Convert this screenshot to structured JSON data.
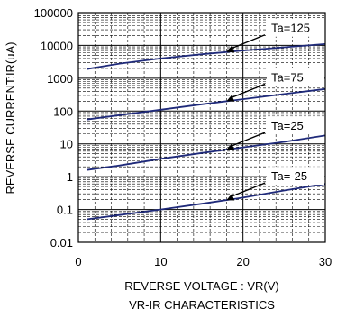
{
  "chart_data": {
    "type": "line",
    "title": "VR-IR CHARACTERISTICS",
    "xlabel": "REVERSE VOLTAGE : VR(V)",
    "ylabel": "REVERSE CURRENT:IR(uA)",
    "xlim": [
      0,
      30
    ],
    "ylim": [
      0.01,
      100000
    ],
    "y_scale": "log",
    "grid": true,
    "x_ticks": [
      0,
      10,
      20,
      30
    ],
    "x_tick_labels": [
      "0",
      "10",
      "20",
      "30"
    ],
    "y_ticks": [
      0.01,
      0.1,
      1,
      10,
      100,
      1000,
      10000,
      100000
    ],
    "y_tick_labels": [
      "0.01",
      "0.1",
      "1",
      "10",
      "100",
      "1000",
      "10000",
      "100000"
    ],
    "series": [
      {
        "name": "Ta=125",
        "x": [
          1,
          5,
          10,
          15,
          20,
          25,
          30
        ],
        "values": [
          1900,
          2800,
          4000,
          5400,
          7000,
          8800,
          11000
        ],
        "color": "#1f2a7a"
      },
      {
        "name": "Ta=75",
        "x": [
          1,
          5,
          10,
          15,
          20,
          25,
          30
        ],
        "values": [
          55,
          75,
          110,
          160,
          230,
          330,
          470
        ],
        "color": "#1f2a7a"
      },
      {
        "name": "Ta=25",
        "x": [
          1,
          5,
          10,
          15,
          20,
          25,
          30
        ],
        "values": [
          1.6,
          2.2,
          3.5,
          5.3,
          7.8,
          11.5,
          18
        ],
        "color": "#1f2a7a"
      },
      {
        "name": "Ta=-25",
        "x": [
          1,
          5,
          10,
          15,
          20,
          25,
          30
        ],
        "values": [
          0.05,
          0.068,
          0.1,
          0.15,
          0.23,
          0.38,
          0.6
        ],
        "color": "#1f2a7a"
      }
    ],
    "annotations": [
      {
        "text": "Ta=125",
        "series": "Ta=125",
        "x": 18
      },
      {
        "text": "Ta=75",
        "series": "Ta=75",
        "x": 18
      },
      {
        "text": "Ta=25",
        "series": "Ta=25",
        "x": 18
      },
      {
        "text": "Ta=-25",
        "series": "Ta=-25",
        "x": 18
      }
    ]
  }
}
